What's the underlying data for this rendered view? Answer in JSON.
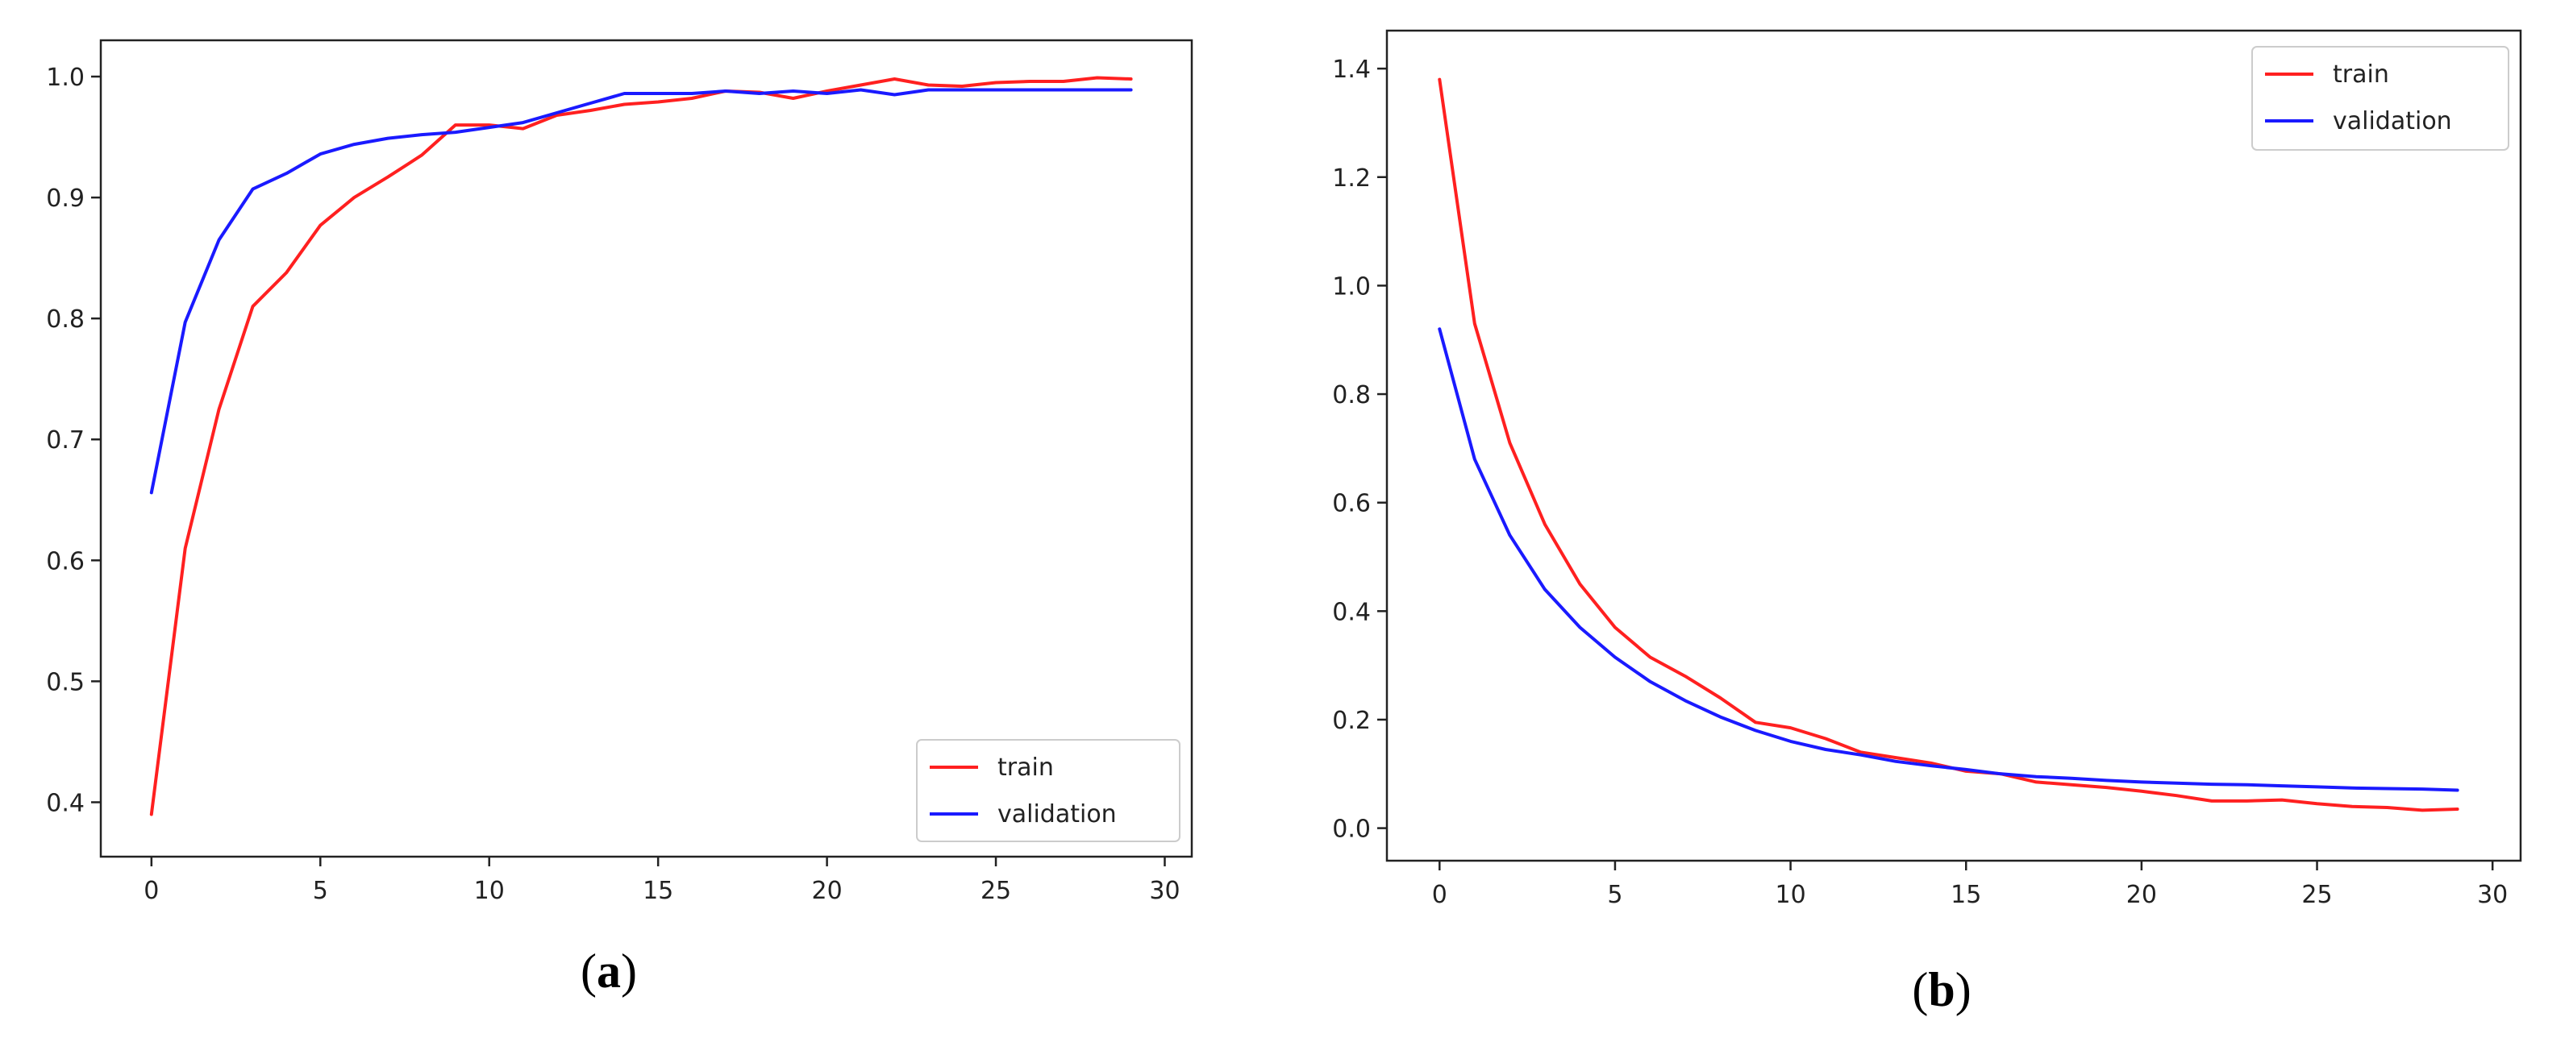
{
  "chart_data": [
    {
      "type": "line",
      "panel_label": "a",
      "title": "",
      "xlabel": "",
      "ylabel": "",
      "xlim": [
        -1.5,
        30.8
      ],
      "ylim": [
        0.355,
        1.03
      ],
      "xticks": [
        0,
        5,
        10,
        15,
        20,
        25,
        30
      ],
      "yticks": [
        0.4,
        0.5,
        0.6,
        0.7,
        0.8,
        0.9,
        1.0
      ],
      "ytick_decimals": 1,
      "legend_position": "bottom-right",
      "grid": false,
      "x": [
        0,
        1,
        2,
        3,
        4,
        5,
        6,
        7,
        8,
        9,
        10,
        11,
        12,
        13,
        14,
        15,
        16,
        17,
        18,
        19,
        20,
        21,
        22,
        23,
        24,
        25,
        26,
        27,
        28,
        29
      ],
      "series": [
        {
          "name": "train",
          "color": "#ff2020",
          "values": [
            0.39,
            0.61,
            0.725,
            0.81,
            0.838,
            0.877,
            0.9,
            0.917,
            0.935,
            0.96,
            0.96,
            0.957,
            0.968,
            0.972,
            0.977,
            0.979,
            0.982,
            0.988,
            0.987,
            0.982,
            0.988,
            0.993,
            0.998,
            0.993,
            0.992,
            0.995,
            0.996,
            0.996,
            0.999,
            0.998
          ]
        },
        {
          "name": "validation",
          "color": "#1a1aff",
          "values": [
            0.656,
            0.797,
            0.865,
            0.907,
            0.92,
            0.936,
            0.944,
            0.949,
            0.952,
            0.954,
            0.958,
            0.962,
            0.97,
            0.978,
            0.986,
            0.986,
            0.986,
            0.988,
            0.986,
            0.988,
            0.986,
            0.989,
            0.985,
            0.989,
            0.989,
            0.989,
            0.989,
            0.989,
            0.989,
            0.989
          ]
        }
      ]
    },
    {
      "type": "line",
      "panel_label": "b",
      "title": "",
      "xlabel": "",
      "ylabel": "",
      "xlim": [
        -1.5,
        30.8
      ],
      "ylim": [
        -0.06,
        1.47
      ],
      "xticks": [
        0,
        5,
        10,
        15,
        20,
        25,
        30
      ],
      "yticks": [
        0.0,
        0.2,
        0.4,
        0.6,
        0.8,
        1.0,
        1.2,
        1.4
      ],
      "ytick_decimals": 1,
      "legend_position": "top-right",
      "grid": false,
      "x": [
        0,
        1,
        2,
        3,
        4,
        5,
        6,
        7,
        8,
        9,
        10,
        11,
        12,
        13,
        14,
        15,
        16,
        17,
        18,
        19,
        20,
        21,
        22,
        23,
        24,
        25,
        26,
        27,
        28,
        29
      ],
      "series": [
        {
          "name": "train",
          "color": "#ff2020",
          "values": [
            1.38,
            0.93,
            0.71,
            0.56,
            0.45,
            0.37,
            0.315,
            0.28,
            0.24,
            0.195,
            0.185,
            0.165,
            0.14,
            0.13,
            0.12,
            0.105,
            0.1,
            0.085,
            0.08,
            0.075,
            0.068,
            0.06,
            0.05,
            0.05,
            0.052,
            0.045,
            0.04,
            0.038,
            0.033,
            0.035
          ]
        },
        {
          "name": "validation",
          "color": "#1a1aff",
          "values": [
            0.92,
            0.68,
            0.54,
            0.44,
            0.37,
            0.315,
            0.27,
            0.235,
            0.205,
            0.18,
            0.16,
            0.145,
            0.135,
            0.123,
            0.115,
            0.108,
            0.1,
            0.095,
            0.092,
            0.088,
            0.085,
            0.083,
            0.081,
            0.08,
            0.078,
            0.076,
            0.074,
            0.073,
            0.072,
            0.07
          ]
        }
      ]
    }
  ]
}
